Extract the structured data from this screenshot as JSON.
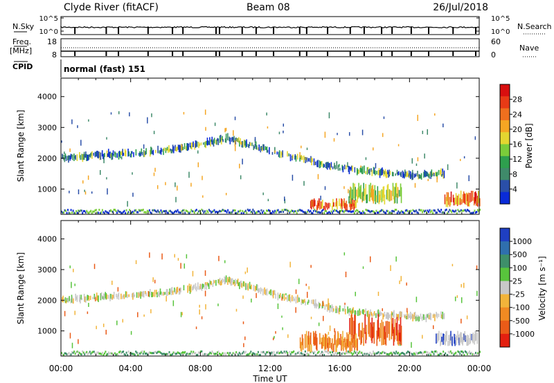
{
  "header": {
    "station": "Clyde River (fitACF)",
    "beam": "Beam 08",
    "date": "26/Jul/2018"
  },
  "panels": {
    "nsky": {
      "left_label": "N.Sky",
      "right_label": "N.Search",
      "left_ticks": [
        "10^5",
        "10^0"
      ],
      "right_ticks": [
        "10^5",
        "10^0"
      ]
    },
    "freq": {
      "left_label_1": "Freq.",
      "left_label_2": "[MHz]",
      "right_label": "Nave",
      "left_ticks": [
        "18",
        "8"
      ],
      "right_ticks": [
        "60",
        "0"
      ]
    },
    "cpid": {
      "label": "CPID",
      "value": "normal (fast) 151"
    }
  },
  "colors": {
    "background": "#ffffff",
    "ground_scatter": "#c0c0c0"
  },
  "chart_data": [
    {
      "type": "heatmap",
      "name": "power",
      "ylabel": "Slant Range [km]",
      "xlabel": "",
      "ylim": [
        180,
        4600
      ],
      "yticks": [
        1000,
        2000,
        3000,
        4000
      ],
      "xlim": [
        0,
        24
      ],
      "colorbar": {
        "label": "Power [dB]",
        "ticks": [
          "4",
          "8",
          "12",
          "16",
          "20",
          "24",
          "28"
        ],
        "colors": [
          "#0a2bd8",
          "#2a4fa8",
          "#3f8a6a",
          "#2e9f4e",
          "#7acc3a",
          "#e4d630",
          "#f5a623",
          "#ef6f1e",
          "#e83a16",
          "#d80f0f"
        ]
      },
      "features": [
        {
          "feature": "scatter band",
          "t": [
            0,
            2,
            4,
            6,
            8,
            9.5,
            11,
            12.5,
            14,
            15.5,
            17,
            19,
            20.5,
            22
          ],
          "range": [
            2000,
            2100,
            2150,
            2250,
            2450,
            2650,
            2400,
            2150,
            1950,
            1750,
            1600,
            1500,
            1450,
            1500
          ],
          "level_db": 8
        },
        {
          "feature": "strong near-range echo",
          "t_start": 14.3,
          "t_end": 17.0,
          "range_start": 300,
          "range_end": 700,
          "level_db": 28
        },
        {
          "feature": "strong near-range echo",
          "t_start": 22.0,
          "t_end": 24.0,
          "range_start": 400,
          "range_end": 950,
          "level_db": 28
        },
        {
          "feature": "moderate echo",
          "t_start": 16.5,
          "t_end": 19.5,
          "range_start": 500,
          "range_end": 1200,
          "level_db": 16
        }
      ]
    },
    {
      "type": "heatmap",
      "name": "velocity",
      "ylabel": "Slant Range [km]",
      "xlabel": "Time UT",
      "ylim": [
        180,
        4600
      ],
      "yticks": [
        1000,
        2000,
        3000,
        4000
      ],
      "xlim": [
        0,
        24
      ],
      "xticks": [
        "00:00",
        "04:00",
        "08:00",
        "12:00",
        "16:00",
        "20:00",
        "00:00"
      ],
      "colorbar": {
        "label": "Velocity [m s⁻¹]",
        "ticks": [
          "1000",
          "500",
          "100",
          "25",
          "-25",
          "-100",
          "-500",
          "-1000"
        ],
        "colors": [
          "#1f3fc2",
          "#2f6fae",
          "#3e8f6a",
          "#58c43c",
          "#c8c8c8",
          "#f2b43a",
          "#f08a22",
          "#ea5b18",
          "#e32010"
        ]
      },
      "features": [
        {
          "feature": "scatter band",
          "t": [
            0,
            2,
            4,
            6,
            8,
            9.5,
            11,
            12.5,
            14,
            15.5,
            17,
            19,
            20.5,
            22
          ],
          "range": [
            2000,
            2100,
            2150,
            2250,
            2450,
            2650,
            2400,
            2150,
            1950,
            1750,
            1600,
            1500,
            1450,
            1500
          ],
          "velocity": 0
        },
        {
          "feature": "receding flow",
          "t_start": 16.5,
          "t_end": 19.5,
          "range_start": 500,
          "range_end": 1550,
          "velocity": -1000
        },
        {
          "feature": "receding flow",
          "t_start": 13.7,
          "t_end": 17.0,
          "range_start": 300,
          "range_end": 1000,
          "velocity": -300
        },
        {
          "feature": "ground scatter",
          "t_start": 21.5,
          "t_end": 24.0,
          "range_start": 500,
          "range_end": 1000,
          "velocity": 0
        }
      ]
    }
  ]
}
